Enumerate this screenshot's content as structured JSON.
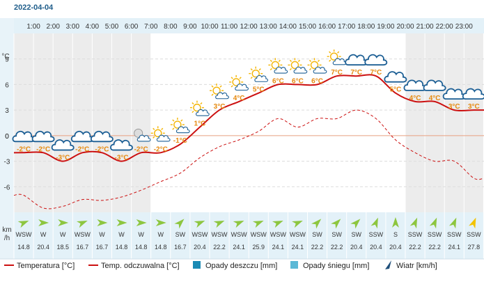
{
  "date": "2022-04-04",
  "y_unit": "°C",
  "wind_unit_top": "km",
  "wind_unit_bottom": "/h",
  "zero_label": "0",
  "chart_data": {
    "type": "line",
    "title": "",
    "x_labels": [
      "1:00",
      "2:00",
      "3:00",
      "4:00",
      "5:00",
      "6:00",
      "7:00",
      "8:00",
      "9:00",
      "10:00",
      "11:00",
      "12:00",
      "13:00",
      "14:00",
      "15:00",
      "16:00",
      "17:00",
      "18:00",
      "19:00",
      "20:00",
      "21:00",
      "22:00",
      "23:00"
    ],
    "y_ticks": [
      "9",
      "6",
      "3",
      "0",
      "-3",
      "-6"
    ],
    "ylim": [
      -9,
      12
    ],
    "grid": true,
    "series": [
      {
        "name": "Temperatura [°C]",
        "color": "#cc1010",
        "values": [
          -2,
          -2,
          -3,
          -2,
          -2,
          -3,
          -2,
          -2,
          -1,
          1,
          3,
          4,
          5,
          6,
          6,
          6,
          7,
          7,
          7,
          5,
          4,
          4,
          3,
          3
        ]
      },
      {
        "name": "Temp. odczuwalna [°C]",
        "color": "#cc1010",
        "dashed": true,
        "values": [
          -7,
          -8.5,
          -8.3,
          -7.5,
          -7.6,
          -7.2,
          -6.4,
          -5.4,
          -4.4,
          -2.6,
          -1.3,
          -0.5,
          0.5,
          2,
          1,
          2,
          2,
          3,
          2,
          -0.5,
          -2,
          -3,
          -3,
          -5
        ]
      }
    ],
    "temp_labels": [
      "-2°C",
      "-2°C",
      "-3°C",
      "-2°C",
      "-2°C",
      "-3°C",
      "-2°C",
      "-2°C",
      "-1°C",
      "1°C",
      "3°C",
      "4°C",
      "5°C",
      "6°C",
      "6°C",
      "6°C",
      "7°C",
      "7°C",
      "7°C",
      "5°C",
      "4°C",
      "4°C",
      "3°C",
      "3°C"
    ],
    "weather_icons": [
      "cloud",
      "cloud",
      "cloud",
      "cloud",
      "cloud",
      "cloud",
      "moon-cloud",
      "sun-cloud",
      "sun-cloud",
      "sun-cloud",
      "sun-cloud",
      "sun-cloud",
      "sun-cloud",
      "sun-cloud",
      "sun-cloud",
      "sun-cloud",
      "sun-cloud",
      "cloud",
      "cloud",
      "cloud",
      "cloud",
      "cloud",
      "cloud",
      "cloud"
    ],
    "wind_dirs": [
      "WSW",
      "W",
      "W",
      "WSW",
      "W",
      "W",
      "W",
      "W",
      "SW",
      "WSW",
      "WSW",
      "WSW",
      "WSW",
      "WSW",
      "WSW",
      "SW",
      "SW",
      "SW",
      "SSW",
      "S",
      "SSW",
      "SSW",
      "SSW",
      "SSW"
    ],
    "wind_speeds": [
      "14.8",
      "20.4",
      "18.5",
      "16.7",
      "16.7",
      "14.8",
      "14.8",
      "14.8",
      "16.7",
      "20.4",
      "22.2",
      "24.1",
      "25.9",
      "24.1",
      "24.1",
      "22.2",
      "22.2",
      "20.4",
      "20.4",
      "20.4",
      "22.2",
      "22.2",
      "24.1",
      "27.8"
    ],
    "wind_deg": [
      247.5,
      270,
      270,
      247.5,
      270,
      270,
      270,
      270,
      225,
      247.5,
      247.5,
      247.5,
      247.5,
      247.5,
      247.5,
      225,
      225,
      225,
      202.5,
      180,
      202.5,
      202.5,
      202.5,
      202.5
    ]
  },
  "legend": [
    {
      "label": "Temperatura [°C]",
      "type": "line",
      "color": "#cc1010"
    },
    {
      "label": "Temp. odczuwalna [°C]",
      "type": "line",
      "color": "#cc1010"
    },
    {
      "label": "Opady deszczu [mm]",
      "type": "box",
      "color": "#1a8ab4"
    },
    {
      "label": "Opady śniegu [mm]",
      "type": "box",
      "color": "#5bb8d6"
    },
    {
      "label": "Wiatr [km/h]",
      "type": "arrow",
      "color": "#1f4f7a"
    }
  ],
  "colors": {
    "band_night": "#ececec",
    "band_light": "#f5f5f5",
    "header_bg": "#e3f1f8",
    "left_bg": "#e8f3f9",
    "cloud_stroke": "#1b5e94",
    "sun": "#f4b400",
    "wind_arrow": "#8dc63f",
    "wind_arrow_last": "#f2c300",
    "zero_line": "#e8a080"
  }
}
